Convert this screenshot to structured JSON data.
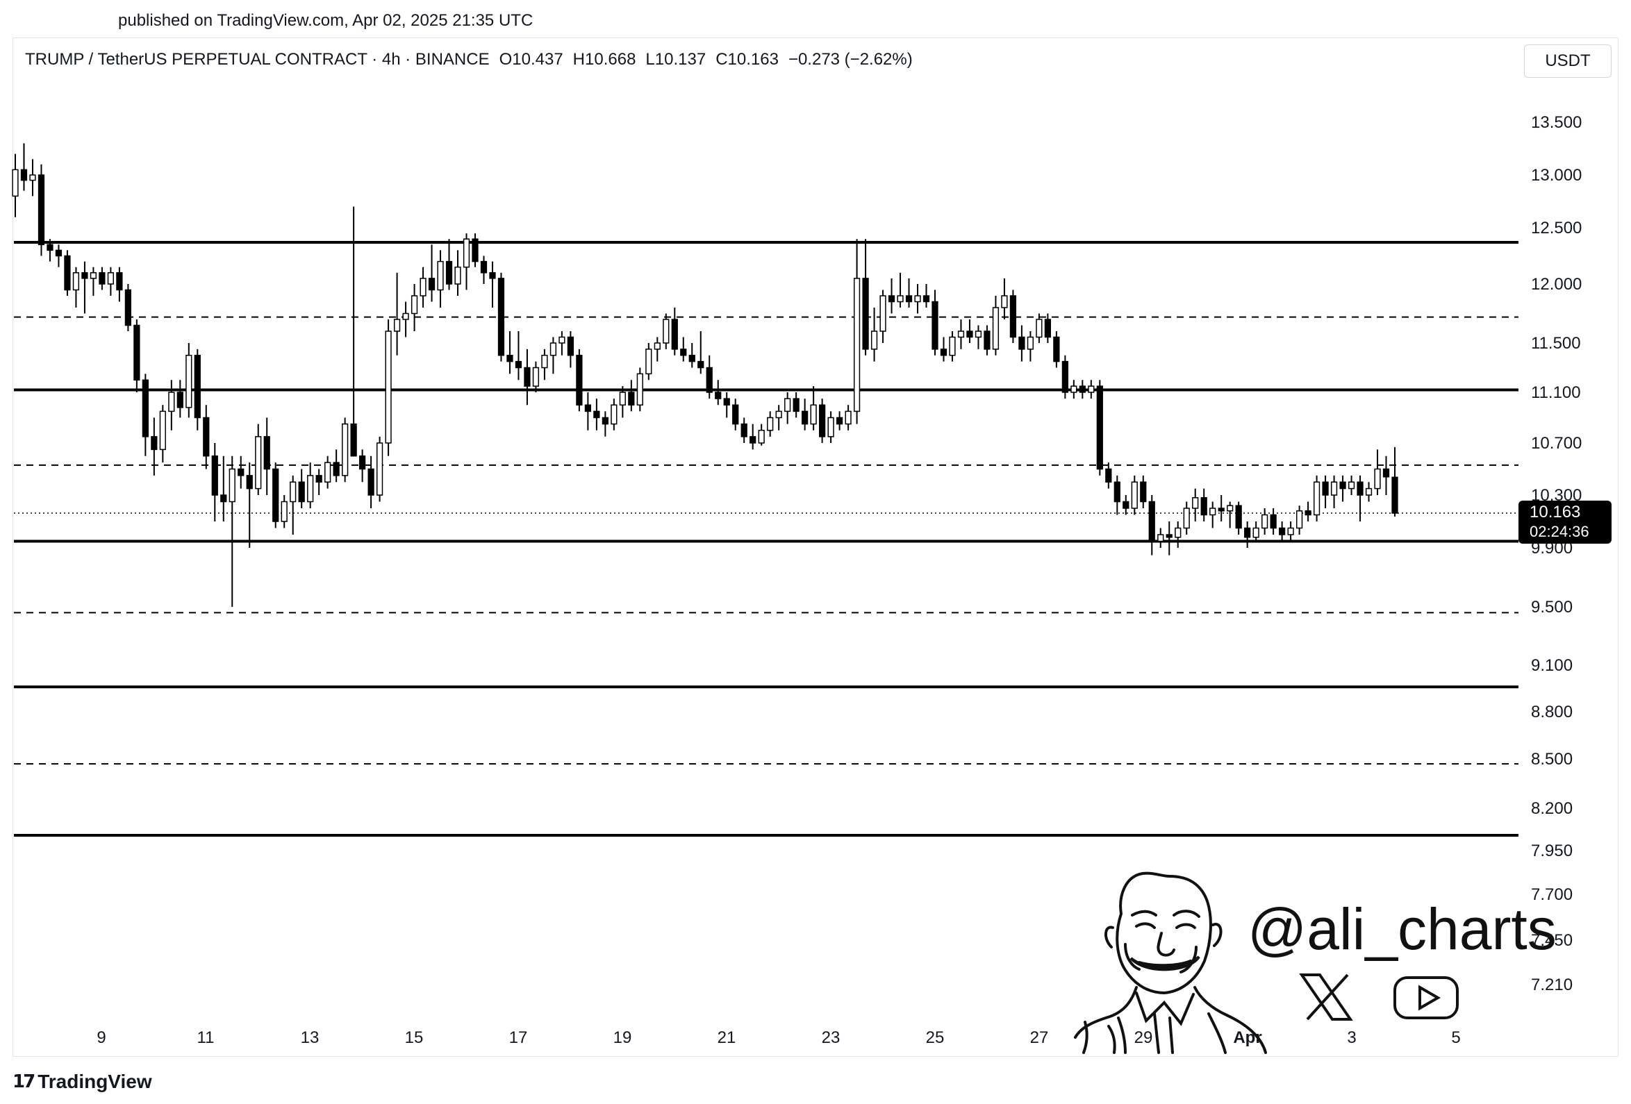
{
  "header": {
    "published": "published on TradingView.com, Apr 02, 2025 21:35 UTC"
  },
  "symbol": {
    "name": "TRUMP / TetherUS PERPETUAL CONTRACT · 4h · BINANCE",
    "open": "O10.437",
    "high": "H10.668",
    "low": "L10.137",
    "close": "C10.163",
    "change": "−0.273 (−2.62%)"
  },
  "currency": "USDT",
  "last_price": {
    "price": "10.163",
    "countdown": "02:24:36"
  },
  "watermark": {
    "handle": "@ali_charts",
    "icons": [
      "x-logo-icon",
      "youtube-icon",
      "caricature-portrait"
    ]
  },
  "footer": {
    "logo_text": "TradingView"
  },
  "colors": {
    "candle": "#000000",
    "background": "#ffffff",
    "level_line": "#000000"
  },
  "chart_data": {
    "type": "candlestick",
    "y_axis_ticks": [
      "13.500",
      "13.000",
      "12.500",
      "12.000",
      "11.500",
      "11.100",
      "10.700",
      "10.300",
      "9.900",
      "9.500",
      "9.100",
      "8.800",
      "8.500",
      "8.200",
      "7.950",
      "7.700",
      "7.450",
      "7.210"
    ],
    "x_axis_ticks": [
      "9",
      "11",
      "13",
      "15",
      "17",
      "19",
      "21",
      "23",
      "25",
      "27",
      "29",
      "Apr",
      "3",
      "5"
    ],
    "horizontal_levels": [
      {
        "price": 12.37,
        "style": "solid"
      },
      {
        "price": 11.72,
        "style": "dashed"
      },
      {
        "price": 11.12,
        "style": "solid"
      },
      {
        "price": 10.53,
        "style": "dashed"
      },
      {
        "price": 9.95,
        "style": "solid"
      },
      {
        "price": 9.46,
        "style": "dashed"
      },
      {
        "price": 8.96,
        "style": "solid"
      },
      {
        "price": 8.47,
        "style": "dashed"
      },
      {
        "price": 8.04,
        "style": "solid"
      }
    ],
    "current_price_line": 10.163,
    "candles": [
      {
        "o": 12.8,
        "h": 13.2,
        "l": 12.6,
        "c": 13.05
      },
      {
        "o": 13.05,
        "h": 13.3,
        "l": 12.85,
        "c": 12.95
      },
      {
        "o": 12.95,
        "h": 13.15,
        "l": 12.8,
        "c": 13.0
      },
      {
        "o": 13.0,
        "h": 13.1,
        "l": 12.25,
        "c": 12.35
      },
      {
        "o": 12.35,
        "h": 12.4,
        "l": 12.2,
        "c": 12.3
      },
      {
        "o": 12.3,
        "h": 12.35,
        "l": 12.15,
        "c": 12.25
      },
      {
        "o": 12.25,
        "h": 12.3,
        "l": 11.9,
        "c": 11.95
      },
      {
        "o": 11.95,
        "h": 12.15,
        "l": 11.8,
        "c": 12.1
      },
      {
        "o": 12.1,
        "h": 12.2,
        "l": 11.75,
        "c": 12.05
      },
      {
        "o": 12.05,
        "h": 12.15,
        "l": 11.9,
        "c": 12.1
      },
      {
        "o": 12.1,
        "h": 12.15,
        "l": 11.95,
        "c": 12.0
      },
      {
        "o": 12.0,
        "h": 12.15,
        "l": 11.9,
        "c": 12.1
      },
      {
        "o": 12.1,
        "h": 12.15,
        "l": 11.85,
        "c": 11.95
      },
      {
        "o": 11.95,
        "h": 12.0,
        "l": 11.6,
        "c": 11.65
      },
      {
        "o": 11.65,
        "h": 11.7,
        "l": 11.1,
        "c": 11.2
      },
      {
        "o": 11.2,
        "h": 11.25,
        "l": 10.6,
        "c": 10.75
      },
      {
        "o": 10.75,
        "h": 10.9,
        "l": 10.45,
        "c": 10.65
      },
      {
        "o": 10.65,
        "h": 11.0,
        "l": 10.55,
        "c": 10.95
      },
      {
        "o": 10.95,
        "h": 11.2,
        "l": 10.8,
        "c": 11.1
      },
      {
        "o": 11.1,
        "h": 11.2,
        "l": 10.9,
        "c": 10.98
      },
      {
        "o": 10.98,
        "h": 11.5,
        "l": 10.9,
        "c": 11.4
      },
      {
        "o": 11.4,
        "h": 11.45,
        "l": 10.8,
        "c": 10.9
      },
      {
        "o": 10.9,
        "h": 11.0,
        "l": 10.5,
        "c": 10.6
      },
      {
        "o": 10.6,
        "h": 10.7,
        "l": 10.1,
        "c": 10.3
      },
      {
        "o": 10.3,
        "h": 10.6,
        "l": 10.1,
        "c": 10.25
      },
      {
        "o": 10.25,
        "h": 10.6,
        "l": 9.5,
        "c": 10.5
      },
      {
        "o": 10.5,
        "h": 10.6,
        "l": 10.35,
        "c": 10.45
      },
      {
        "o": 10.45,
        "h": 10.55,
        "l": 9.9,
        "c": 10.35
      },
      {
        "o": 10.35,
        "h": 10.85,
        "l": 10.3,
        "c": 10.75
      },
      {
        "o": 10.75,
        "h": 10.9,
        "l": 10.3,
        "c": 10.5
      },
      {
        "o": 10.5,
        "h": 10.55,
        "l": 10.05,
        "c": 10.1
      },
      {
        "o": 10.1,
        "h": 10.3,
        "l": 10.05,
        "c": 10.25
      },
      {
        "o": 10.25,
        "h": 10.45,
        "l": 10.0,
        "c": 10.4
      },
      {
        "o": 10.4,
        "h": 10.5,
        "l": 10.2,
        "c": 10.25
      },
      {
        "o": 10.25,
        "h": 10.55,
        "l": 10.2,
        "c": 10.45
      },
      {
        "o": 10.45,
        "h": 10.5,
        "l": 10.3,
        "c": 10.4
      },
      {
        "o": 10.4,
        "h": 10.6,
        "l": 10.35,
        "c": 10.55
      },
      {
        "o": 10.55,
        "h": 10.65,
        "l": 10.4,
        "c": 10.45
      },
      {
        "o": 10.45,
        "h": 10.9,
        "l": 10.4,
        "c": 10.85
      },
      {
        "o": 10.85,
        "h": 12.7,
        "l": 10.6,
        "c": 10.6
      },
      {
        "o": 10.6,
        "h": 10.65,
        "l": 10.4,
        "c": 10.5
      },
      {
        "o": 10.5,
        "h": 10.6,
        "l": 10.2,
        "c": 10.3
      },
      {
        "o": 10.3,
        "h": 10.75,
        "l": 10.25,
        "c": 10.7
      },
      {
        "o": 10.7,
        "h": 11.7,
        "l": 10.6,
        "c": 11.6
      },
      {
        "o": 11.6,
        "h": 12.1,
        "l": 11.4,
        "c": 11.7
      },
      {
        "o": 11.7,
        "h": 11.85,
        "l": 11.55,
        "c": 11.75
      },
      {
        "o": 11.75,
        "h": 12.0,
        "l": 11.6,
        "c": 11.9
      },
      {
        "o": 11.9,
        "h": 12.15,
        "l": 11.8,
        "c": 12.05
      },
      {
        "o": 12.05,
        "h": 12.35,
        "l": 11.85,
        "c": 11.95
      },
      {
        "o": 11.95,
        "h": 12.3,
        "l": 11.8,
        "c": 12.2
      },
      {
        "o": 12.2,
        "h": 12.4,
        "l": 11.95,
        "c": 12.0
      },
      {
        "o": 12.0,
        "h": 12.3,
        "l": 11.9,
        "c": 12.15
      },
      {
        "o": 12.15,
        "h": 12.45,
        "l": 11.95,
        "c": 12.4
      },
      {
        "o": 12.4,
        "h": 12.45,
        "l": 12.15,
        "c": 12.2
      },
      {
        "o": 12.2,
        "h": 12.25,
        "l": 12.0,
        "c": 12.1
      },
      {
        "o": 12.1,
        "h": 12.2,
        "l": 11.8,
        "c": 12.05
      },
      {
        "o": 12.05,
        "h": 12.1,
        "l": 11.35,
        "c": 11.4
      },
      {
        "o": 11.4,
        "h": 11.6,
        "l": 11.25,
        "c": 11.35
      },
      {
        "o": 11.35,
        "h": 11.6,
        "l": 11.2,
        "c": 11.3
      },
      {
        "o": 11.3,
        "h": 11.45,
        "l": 11.0,
        "c": 11.15
      },
      {
        "o": 11.15,
        "h": 11.35,
        "l": 11.1,
        "c": 11.3
      },
      {
        "o": 11.3,
        "h": 11.45,
        "l": 11.2,
        "c": 11.4
      },
      {
        "o": 11.4,
        "h": 11.55,
        "l": 11.25,
        "c": 11.5
      },
      {
        "o": 11.5,
        "h": 11.6,
        "l": 11.4,
        "c": 11.55
      },
      {
        "o": 11.55,
        "h": 11.6,
        "l": 11.3,
        "c": 11.4
      },
      {
        "o": 11.4,
        "h": 11.45,
        "l": 10.95,
        "c": 11.0
      },
      {
        "o": 11.0,
        "h": 11.1,
        "l": 10.8,
        "c": 10.95
      },
      {
        "o": 10.95,
        "h": 11.05,
        "l": 10.8,
        "c": 10.9
      },
      {
        "o": 10.9,
        "h": 10.95,
        "l": 10.75,
        "c": 10.85
      },
      {
        "o": 10.85,
        "h": 11.05,
        "l": 10.8,
        "c": 11.0
      },
      {
        "o": 11.0,
        "h": 11.15,
        "l": 10.9,
        "c": 11.1
      },
      {
        "o": 11.1,
        "h": 11.2,
        "l": 10.95,
        "c": 11.0
      },
      {
        "o": 11.0,
        "h": 11.3,
        "l": 10.95,
        "c": 11.25
      },
      {
        "o": 11.25,
        "h": 11.5,
        "l": 11.2,
        "c": 11.45
      },
      {
        "o": 11.45,
        "h": 11.55,
        "l": 11.35,
        "c": 11.5
      },
      {
        "o": 11.5,
        "h": 11.75,
        "l": 11.45,
        "c": 11.7
      },
      {
        "o": 11.7,
        "h": 11.8,
        "l": 11.4,
        "c": 11.45
      },
      {
        "o": 11.45,
        "h": 11.55,
        "l": 11.35,
        "c": 11.4
      },
      {
        "o": 11.4,
        "h": 11.5,
        "l": 11.3,
        "c": 11.35
      },
      {
        "o": 11.35,
        "h": 11.6,
        "l": 11.25,
        "c": 11.3
      },
      {
        "o": 11.3,
        "h": 11.4,
        "l": 11.05,
        "c": 11.1
      },
      {
        "o": 11.1,
        "h": 11.2,
        "l": 11.0,
        "c": 11.05
      },
      {
        "o": 11.05,
        "h": 11.1,
        "l": 10.9,
        "c": 11.0
      },
      {
        "o": 11.0,
        "h": 11.05,
        "l": 10.8,
        "c": 10.85
      },
      {
        "o": 10.85,
        "h": 10.9,
        "l": 10.7,
        "c": 10.75
      },
      {
        "o": 10.75,
        "h": 10.85,
        "l": 10.65,
        "c": 10.7
      },
      {
        "o": 10.7,
        "h": 10.85,
        "l": 10.68,
        "c": 10.8
      },
      {
        "o": 10.8,
        "h": 10.95,
        "l": 10.75,
        "c": 10.9
      },
      {
        "o": 10.9,
        "h": 11.0,
        "l": 10.8,
        "c": 10.95
      },
      {
        "o": 10.95,
        "h": 11.1,
        "l": 10.85,
        "c": 11.05
      },
      {
        "o": 11.05,
        "h": 11.1,
        "l": 10.9,
        "c": 10.95
      },
      {
        "o": 10.95,
        "h": 11.05,
        "l": 10.8,
        "c": 10.85
      },
      {
        "o": 10.85,
        "h": 11.15,
        "l": 10.8,
        "c": 11.0
      },
      {
        "o": 11.0,
        "h": 11.05,
        "l": 10.7,
        "c": 10.75
      },
      {
        "o": 10.75,
        "h": 10.95,
        "l": 10.7,
        "c": 10.9
      },
      {
        "o": 10.9,
        "h": 10.95,
        "l": 10.8,
        "c": 10.85
      },
      {
        "o": 10.85,
        "h": 11.0,
        "l": 10.8,
        "c": 10.95
      },
      {
        "o": 10.95,
        "h": 12.4,
        "l": 10.85,
        "c": 12.05
      },
      {
        "o": 12.05,
        "h": 12.4,
        "l": 11.4,
        "c": 11.45
      },
      {
        "o": 11.45,
        "h": 11.8,
        "l": 11.35,
        "c": 11.6
      },
      {
        "o": 11.6,
        "h": 11.95,
        "l": 11.5,
        "c": 11.9
      },
      {
        "o": 11.9,
        "h": 12.05,
        "l": 11.75,
        "c": 11.85
      },
      {
        "o": 11.85,
        "h": 12.1,
        "l": 11.8,
        "c": 11.9
      },
      {
        "o": 11.9,
        "h": 12.05,
        "l": 11.8,
        "c": 11.85
      },
      {
        "o": 11.85,
        "h": 12.0,
        "l": 11.75,
        "c": 11.9
      },
      {
        "o": 11.9,
        "h": 12.0,
        "l": 11.8,
        "c": 11.85
      },
      {
        "o": 11.85,
        "h": 11.95,
        "l": 11.4,
        "c": 11.45
      },
      {
        "o": 11.45,
        "h": 11.55,
        "l": 11.35,
        "c": 11.4
      },
      {
        "o": 11.4,
        "h": 11.6,
        "l": 11.35,
        "c": 11.55
      },
      {
        "o": 11.55,
        "h": 11.7,
        "l": 11.45,
        "c": 11.6
      },
      {
        "o": 11.6,
        "h": 11.7,
        "l": 11.5,
        "c": 11.55
      },
      {
        "o": 11.55,
        "h": 11.65,
        "l": 11.45,
        "c": 11.6
      },
      {
        "o": 11.6,
        "h": 11.65,
        "l": 11.4,
        "c": 11.45
      },
      {
        "o": 11.45,
        "h": 11.9,
        "l": 11.4,
        "c": 11.8
      },
      {
        "o": 11.8,
        "h": 12.05,
        "l": 11.7,
        "c": 11.9
      },
      {
        "o": 11.9,
        "h": 11.95,
        "l": 11.5,
        "c": 11.55
      },
      {
        "o": 11.55,
        "h": 11.65,
        "l": 11.35,
        "c": 11.45
      },
      {
        "o": 11.45,
        "h": 11.6,
        "l": 11.35,
        "c": 11.55
      },
      {
        "o": 11.55,
        "h": 11.75,
        "l": 11.5,
        "c": 11.7
      },
      {
        "o": 11.7,
        "h": 11.75,
        "l": 11.5,
        "c": 11.55
      },
      {
        "o": 11.55,
        "h": 11.6,
        "l": 11.3,
        "c": 11.35
      },
      {
        "o": 11.35,
        "h": 11.4,
        "l": 11.05,
        "c": 11.1
      },
      {
        "o": 11.1,
        "h": 11.2,
        "l": 11.05,
        "c": 11.15
      },
      {
        "o": 11.15,
        "h": 11.2,
        "l": 11.05,
        "c": 11.1
      },
      {
        "o": 11.1,
        "h": 11.2,
        "l": 11.05,
        "c": 11.15
      },
      {
        "o": 11.15,
        "h": 11.2,
        "l": 10.45,
        "c": 10.5
      },
      {
        "o": 10.5,
        "h": 10.55,
        "l": 10.35,
        "c": 10.4
      },
      {
        "o": 10.4,
        "h": 10.45,
        "l": 10.15,
        "c": 10.25
      },
      {
        "o": 10.25,
        "h": 10.3,
        "l": 10.15,
        "c": 10.2
      },
      {
        "o": 10.2,
        "h": 10.45,
        "l": 10.15,
        "c": 10.4
      },
      {
        "o": 10.4,
        "h": 10.45,
        "l": 10.2,
        "c": 10.25
      },
      {
        "o": 10.25,
        "h": 10.3,
        "l": 9.85,
        "c": 9.95
      },
      {
        "o": 9.95,
        "h": 10.05,
        "l": 9.9,
        "c": 10.0
      },
      {
        "o": 10.0,
        "h": 10.1,
        "l": 9.85,
        "c": 9.98
      },
      {
        "o": 9.98,
        "h": 10.1,
        "l": 9.9,
        "c": 10.05
      },
      {
        "o": 10.05,
        "h": 10.25,
        "l": 10.0,
        "c": 10.2
      },
      {
        "o": 10.2,
        "h": 10.35,
        "l": 10.1,
        "c": 10.28
      },
      {
        "o": 10.28,
        "h": 10.35,
        "l": 10.1,
        "c": 10.15
      },
      {
        "o": 10.15,
        "h": 10.25,
        "l": 10.05,
        "c": 10.2
      },
      {
        "o": 10.2,
        "h": 10.3,
        "l": 10.1,
        "c": 10.18
      },
      {
        "o": 10.18,
        "h": 10.25,
        "l": 10.05,
        "c": 10.22
      },
      {
        "o": 10.22,
        "h": 10.25,
        "l": 10.0,
        "c": 10.05
      },
      {
        "o": 10.05,
        "h": 10.1,
        "l": 9.9,
        "c": 9.98
      },
      {
        "o": 9.98,
        "h": 10.1,
        "l": 9.95,
        "c": 10.05
      },
      {
        "o": 10.05,
        "h": 10.2,
        "l": 10.0,
        "c": 10.15
      },
      {
        "o": 10.15,
        "h": 10.2,
        "l": 10.0,
        "c": 10.05
      },
      {
        "o": 10.05,
        "h": 10.1,
        "l": 9.95,
        "c": 10.0
      },
      {
        "o": 10.0,
        "h": 10.1,
        "l": 9.95,
        "c": 10.05
      },
      {
        "o": 10.05,
        "h": 10.22,
        "l": 10.0,
        "c": 10.18
      },
      {
        "o": 10.18,
        "h": 10.25,
        "l": 10.1,
        "c": 10.15
      },
      {
        "o": 10.15,
        "h": 10.45,
        "l": 10.1,
        "c": 10.4
      },
      {
        "o": 10.4,
        "h": 10.45,
        "l": 10.2,
        "c": 10.3
      },
      {
        "o": 10.3,
        "h": 10.45,
        "l": 10.2,
        "c": 10.4
      },
      {
        "o": 10.4,
        "h": 10.45,
        "l": 10.25,
        "c": 10.35
      },
      {
        "o": 10.35,
        "h": 10.45,
        "l": 10.3,
        "c": 10.4
      },
      {
        "o": 10.4,
        "h": 10.45,
        "l": 10.1,
        "c": 10.3
      },
      {
        "o": 10.3,
        "h": 10.4,
        "l": 10.25,
        "c": 10.35
      },
      {
        "o": 10.35,
        "h": 10.65,
        "l": 10.3,
        "c": 10.5
      },
      {
        "o": 10.5,
        "h": 10.6,
        "l": 10.3,
        "c": 10.44
      },
      {
        "o": 10.437,
        "h": 10.668,
        "l": 10.137,
        "c": 10.163
      }
    ]
  }
}
